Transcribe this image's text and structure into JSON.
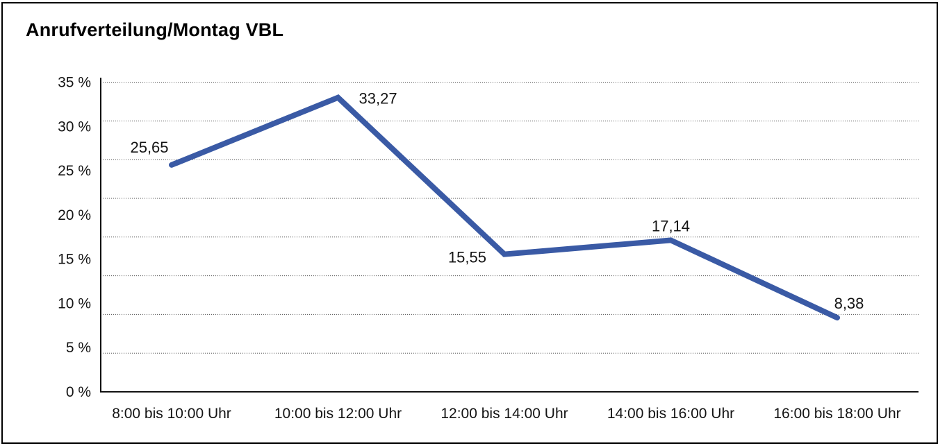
{
  "title": "Anrufverteilung/Montag VBL",
  "chart_data": {
    "type": "line",
    "title": "Anrufverteilung/Montag VBL",
    "categories": [
      "8:00 bis 10:00 Uhr",
      "10:00 bis 12:00 Uhr",
      "12:00 bis 14:00 Uhr",
      "14:00 bis 16:00 Uhr",
      "16:00 bis 18:00 Uhr"
    ],
    "values": [
      25.65,
      33.27,
      15.55,
      17.14,
      8.38
    ],
    "value_labels": [
      "25,65",
      "33,27",
      "15,55",
      "17,14",
      "8,38"
    ],
    "y_ticks": [
      {
        "value": 0,
        "label": "0 %"
      },
      {
        "value": 5,
        "label": "5 %"
      },
      {
        "value": 10,
        "label": "10 %"
      },
      {
        "value": 15,
        "label": "15 %"
      },
      {
        "value": 20,
        "label": "20 %"
      },
      {
        "value": 25,
        "label": "25 %"
      },
      {
        "value": 30,
        "label": "30 %"
      },
      {
        "value": 35,
        "label": "35 %"
      }
    ],
    "ylim": [
      0,
      35
    ],
    "grid_intervals": 8,
    "grid_style": "dotted",
    "line_color": "#3a5aa5",
    "axis_color": "#111111",
    "grid_color": "#4d4d4d",
    "legend": "none",
    "xlabel": "",
    "ylabel": ""
  }
}
